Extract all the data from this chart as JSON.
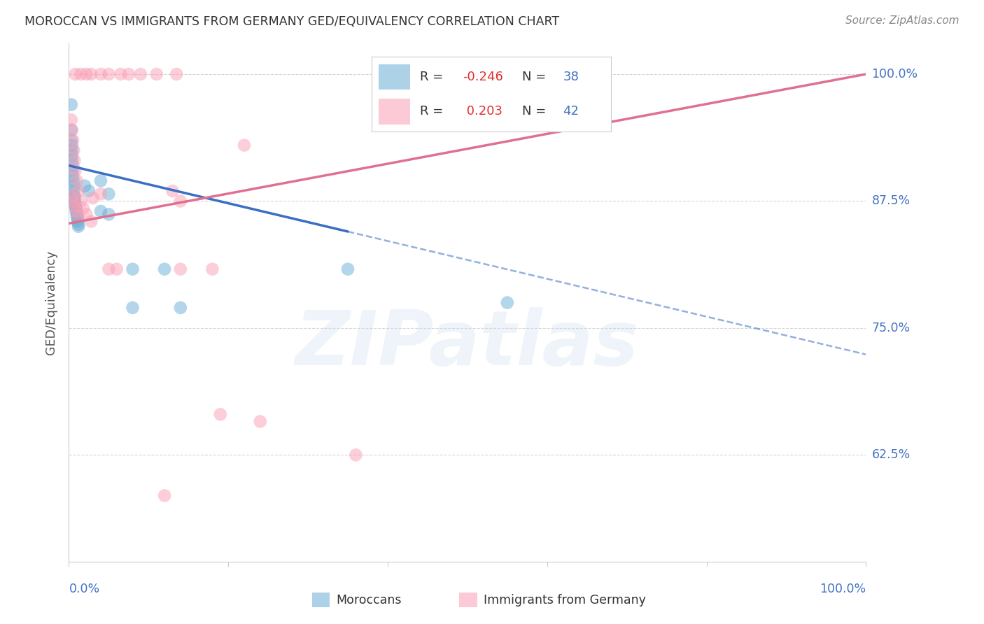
{
  "title": "MOROCCAN VS IMMIGRANTS FROM GERMANY GED/EQUIVALENCY CORRELATION CHART",
  "source": "Source: ZipAtlas.com",
  "ylabel": "GED/Equivalency",
  "ytick_labels": [
    "100.0%",
    "87.5%",
    "75.0%",
    "62.5%"
  ],
  "ytick_values": [
    1.0,
    0.875,
    0.75,
    0.625
  ],
  "xlim": [
    0.0,
    1.0
  ],
  "ylim": [
    0.52,
    1.03
  ],
  "moroccan_points": [
    [
      0.003,
      0.97
    ],
    [
      0.003,
      0.945
    ],
    [
      0.003,
      0.935
    ],
    [
      0.004,
      0.93
    ],
    [
      0.004,
      0.925
    ],
    [
      0.004,
      0.92
    ],
    [
      0.004,
      0.915
    ],
    [
      0.005,
      0.91
    ],
    [
      0.005,
      0.905
    ],
    [
      0.005,
      0.9
    ],
    [
      0.006,
      0.895
    ],
    [
      0.006,
      0.89
    ],
    [
      0.006,
      0.885
    ],
    [
      0.007,
      0.88
    ],
    [
      0.007,
      0.878
    ],
    [
      0.007,
      0.875
    ],
    [
      0.008,
      0.873
    ],
    [
      0.008,
      0.87
    ],
    [
      0.009,
      0.868
    ],
    [
      0.009,
      0.865
    ],
    [
      0.01,
      0.863
    ],
    [
      0.01,
      0.86
    ],
    [
      0.011,
      0.858
    ],
    [
      0.011,
      0.855
    ],
    [
      0.012,
      0.852
    ],
    [
      0.012,
      0.85
    ],
    [
      0.02,
      0.89
    ],
    [
      0.025,
      0.885
    ],
    [
      0.04,
      0.895
    ],
    [
      0.05,
      0.882
    ],
    [
      0.04,
      0.865
    ],
    [
      0.05,
      0.862
    ],
    [
      0.08,
      0.808
    ],
    [
      0.12,
      0.808
    ],
    [
      0.35,
      0.808
    ],
    [
      0.08,
      0.77
    ],
    [
      0.14,
      0.77
    ],
    [
      0.55,
      0.775
    ]
  ],
  "german_points": [
    [
      0.008,
      1.0
    ],
    [
      0.015,
      1.0
    ],
    [
      0.022,
      1.0
    ],
    [
      0.028,
      1.0
    ],
    [
      0.04,
      1.0
    ],
    [
      0.05,
      1.0
    ],
    [
      0.065,
      1.0
    ],
    [
      0.075,
      1.0
    ],
    [
      0.09,
      1.0
    ],
    [
      0.11,
      1.0
    ],
    [
      0.135,
      1.0
    ],
    [
      0.003,
      0.955
    ],
    [
      0.004,
      0.945
    ],
    [
      0.005,
      0.935
    ],
    [
      0.006,
      0.925
    ],
    [
      0.007,
      0.915
    ],
    [
      0.008,
      0.905
    ],
    [
      0.01,
      0.895
    ],
    [
      0.012,
      0.885
    ],
    [
      0.015,
      0.875
    ],
    [
      0.018,
      0.868
    ],
    [
      0.022,
      0.862
    ],
    [
      0.028,
      0.855
    ],
    [
      0.004,
      0.88
    ],
    [
      0.006,
      0.875
    ],
    [
      0.008,
      0.87
    ],
    [
      0.01,
      0.865
    ],
    [
      0.012,
      0.86
    ],
    [
      0.05,
      0.808
    ],
    [
      0.06,
      0.808
    ],
    [
      0.14,
      0.808
    ],
    [
      0.18,
      0.808
    ],
    [
      0.19,
      0.665
    ],
    [
      0.24,
      0.658
    ],
    [
      0.36,
      0.625
    ],
    [
      0.12,
      0.585
    ],
    [
      0.48,
      0.97
    ],
    [
      0.22,
      0.93
    ],
    [
      0.13,
      0.885
    ],
    [
      0.04,
      0.882
    ],
    [
      0.03,
      0.878
    ],
    [
      0.14,
      0.875
    ]
  ],
  "blue_line_solid": {
    "x_start": 0.0,
    "y_start": 0.91,
    "x_end": 0.35,
    "y_end": 0.845
  },
  "blue_line_dashed": {
    "x_start": 0.35,
    "y_start": 0.845,
    "x_end": 1.0,
    "y_end": 0.724
  },
  "pink_line": {
    "x_start": 0.0,
    "y_start": 0.853,
    "x_end": 1.0,
    "y_end": 1.0
  },
  "watermark": "ZIPatlas",
  "background_color": "#ffffff",
  "grid_color": "#cccccc",
  "title_color": "#333333",
  "blue_color": "#6baed6",
  "pink_color": "#fa9fb5",
  "blue_line_color": "#3a6fc4",
  "pink_line_color": "#e07090",
  "right_tick_color": "#4472c4"
}
